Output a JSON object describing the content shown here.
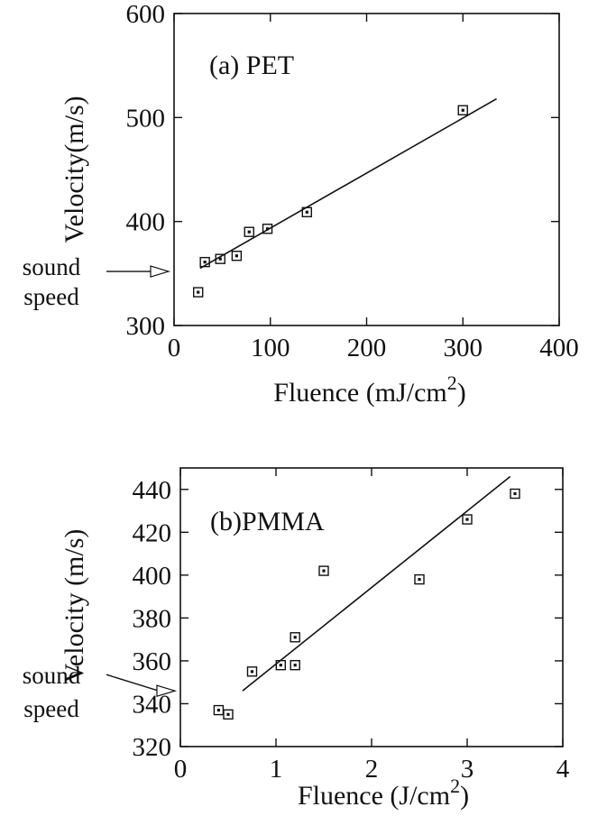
{
  "chart_data": [
    {
      "type": "scatter",
      "title": "(a) PET",
      "xlabel": "Fluence (mJ/cm",
      "xlabel_sup": "2",
      "xlabel_end": ")",
      "ylabel": "Velocity(m/s)",
      "xlim": [
        0,
        400
      ],
      "ylim": [
        300,
        600
      ],
      "xticks": [
        0,
        100,
        200,
        300,
        400
      ],
      "yticks": [
        300,
        400,
        500,
        600
      ],
      "xtick_labels": [
        "0",
        "100",
        "200",
        "300",
        "400"
      ],
      "ytick_labels": [
        "300",
        "400",
        "500",
        "600"
      ],
      "grid": false,
      "series": [
        {
          "x": [
            25,
            32,
            48,
            65,
            78,
            97,
            138,
            300
          ],
          "y": [
            332,
            361,
            364,
            367,
            390,
            393,
            409,
            507
          ]
        }
      ],
      "fit_line": {
        "x": [
          27,
          335
        ],
        "y": [
          355,
          518
        ]
      },
      "annotation": {
        "lines": [
          "sound",
          "speed"
        ],
        "arrow_to_y": 352
      }
    },
    {
      "type": "scatter",
      "title": "(b)PMMA",
      "xlabel": "Fluence (J/cm",
      "xlabel_sup": "2",
      "xlabel_end": ")",
      "ylabel": "Velocity (m/s)",
      "xlim": [
        0,
        4
      ],
      "ylim": [
        320,
        450
      ],
      "xticks": [
        0,
        1,
        2,
        3,
        4
      ],
      "yticks": [
        320,
        340,
        360,
        380,
        400,
        420,
        440
      ],
      "xtick_labels": [
        "0",
        "1",
        "2",
        "3",
        "4"
      ],
      "ytick_labels": [
        "320",
        "340",
        "360",
        "380",
        "400",
        "420",
        "440"
      ],
      "grid": false,
      "series": [
        {
          "x": [
            0.4,
            0.5,
            0.75,
            1.05,
            1.2,
            1.2,
            1.5,
            2.5,
            3.0,
            3.5
          ],
          "y": [
            337,
            335,
            355,
            358,
            358,
            371,
            402,
            398,
            426,
            438
          ]
        }
      ],
      "fit_line": {
        "x": [
          0.65,
          3.45
        ],
        "y": [
          346,
          446
        ]
      },
      "annotation": {
        "lines": [
          "sound",
          "speed"
        ],
        "arrow_to_y": 346
      }
    }
  ]
}
